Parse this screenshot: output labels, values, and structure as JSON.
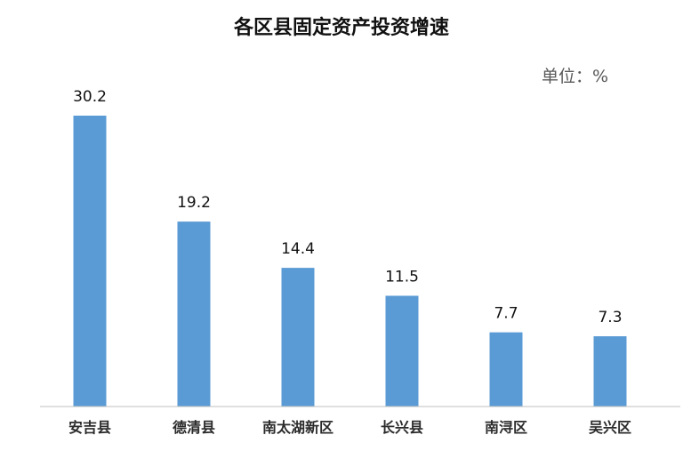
{
  "chart_data": {
    "type": "bar",
    "title": "各区县固定资产投资增速",
    "unit_label": "单位：%",
    "categories": [
      "安吉县",
      "德清县",
      "南太湖新区",
      "长兴县",
      "南浔区",
      "吴兴区"
    ],
    "values": [
      30.2,
      19.2,
      14.4,
      11.5,
      7.7,
      7.3
    ],
    "value_labels": [
      "30.2",
      "19.2",
      "14.4",
      "11.5",
      "7.7",
      "7.3"
    ],
    "xlabel": "",
    "ylabel": "",
    "ylim": [
      0,
      30.2
    ],
    "grid": false,
    "legend": "none",
    "colors": {
      "bar": "#5b9bd5",
      "axis": "#bfbfbf"
    }
  }
}
